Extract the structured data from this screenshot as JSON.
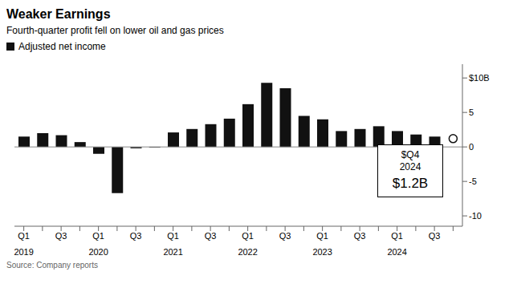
{
  "chart_data": {
    "type": "bar",
    "title": "Weaker Earnings",
    "subtitle": "Fourth-quarter profit fell on lower oil and gas prices",
    "source": "Source: Company reports",
    "legend": "top-left",
    "categories": [
      "Q1",
      null,
      "Q3",
      null,
      "Q1",
      null,
      "Q3",
      null,
      "Q1",
      null,
      "Q3",
      null,
      "Q1",
      null,
      "Q3",
      null,
      "Q1",
      null,
      "Q3",
      null,
      "Q1",
      null,
      "Q3",
      null
    ],
    "year_categories": [
      "2019",
      null,
      null,
      null,
      "2020",
      null,
      null,
      null,
      "2021",
      null,
      null,
      null,
      "2022",
      null,
      null,
      null,
      "2023",
      null,
      null,
      null,
      "2024",
      null,
      null,
      null
    ],
    "series": [
      {
        "name": "Adjusted net income",
        "type": "bar",
        "color": "#111111",
        "values": [
          1.5,
          2.0,
          1.7,
          0.7,
          -1.0,
          -6.7,
          -0.2,
          -0.1,
          2.1,
          2.6,
          3.3,
          4.1,
          6.2,
          9.3,
          8.5,
          4.5,
          4.0,
          2.3,
          2.6,
          3.0,
          2.3,
          1.8,
          1.5,
          null
        ]
      },
      {
        "type": "scatter",
        "marker": "open circle",
        "color": "#111111",
        "values": [
          null,
          null,
          null,
          null,
          null,
          null,
          null,
          null,
          null,
          null,
          null,
          null,
          null,
          null,
          null,
          null,
          null,
          null,
          null,
          null,
          null,
          null,
          null,
          1.2
        ]
      }
    ],
    "ylim": [
      -11.5,
      12
    ],
    "yticks": [
      {
        "value": 10,
        "label": "$10B"
      },
      5,
      0,
      -5,
      -10
    ],
    "annotations": [
      "$Q4",
      "2024",
      "$1.2B"
    ],
    "grid": false
  }
}
